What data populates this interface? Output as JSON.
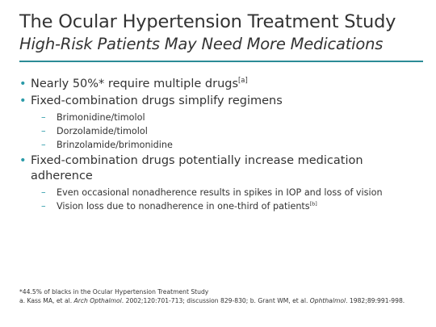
{
  "slide": {
    "title": "The Ocular Hypertension Treatment Study",
    "subtitle": "High-Risk Patients May Need More Medications",
    "accent_color": "#2a9aa8",
    "rule_color": "#2c8b96"
  },
  "bullets": [
    {
      "text": "Nearly 50%* require multiple drugs",
      "sup": "[a]",
      "subs": []
    },
    {
      "text": "Fixed-combination drugs simplify regimens",
      "sup": "",
      "subs": [
        {
          "text": "Brimonidine/timolol",
          "sup": ""
        },
        {
          "text": "Dorzolamide/timolol",
          "sup": ""
        },
        {
          "text": "Brinzolamide/brimonidine",
          "sup": ""
        }
      ]
    },
    {
      "text": "Fixed-combination drugs potentially increase medication adherence",
      "sup": "",
      "subs": [
        {
          "text": "Even occasional nonadherence results in spikes in IOP and loss of vision",
          "sup": ""
        },
        {
          "text": "Vision loss due to nonadherence in one-third of patients",
          "sup": "[b]"
        }
      ]
    }
  ],
  "footnotes": {
    "note": "*44.5% of blacks in the Ocular Hypertension Treatment Study",
    "ref_a_prefix": "a. Kass MA, et al. ",
    "ref_a_journal": "Arch Opthalmol",
    "ref_a_suffix": ". 2002;120:701-713; discussion 829-830; b. Grant WM, et al. ",
    "ref_b_journal": "Ophthalmol",
    "ref_b_suffix": ". 1982;89:991-998."
  },
  "icons": {
    "bullet": "bullet-dot-icon",
    "sub_bullet": "dash-icon"
  }
}
